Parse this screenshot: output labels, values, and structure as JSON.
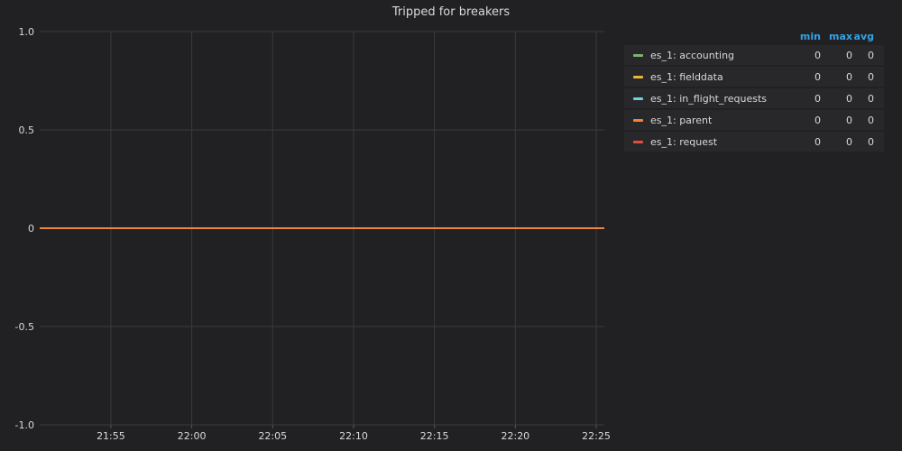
{
  "panel": {
    "title": "Tripped for breakers"
  },
  "legend": {
    "headers": {
      "min": "min",
      "max": "max",
      "avg": "avg"
    },
    "items": [
      {
        "name": "es_1: accounting",
        "color": "#7eb26d",
        "min": "0",
        "max": "0",
        "avg": "0"
      },
      {
        "name": "es_1: fielddata",
        "color": "#eab839",
        "min": "0",
        "max": "0",
        "avg": "0"
      },
      {
        "name": "es_1: in_flight_requests",
        "color": "#6ed0e0",
        "min": "0",
        "max": "0",
        "avg": "0"
      },
      {
        "name": "es_1: parent",
        "color": "#ef843c",
        "min": "0",
        "max": "0",
        "avg": "0"
      },
      {
        "name": "es_1: request",
        "color": "#e24d42",
        "min": "0",
        "max": "0",
        "avg": "0"
      }
    ]
  },
  "chart_data": {
    "type": "line",
    "title": "Tripped for breakers",
    "xlabel": "",
    "ylabel": "",
    "x_ticks": [
      "21:55",
      "22:00",
      "22:05",
      "22:10",
      "22:15",
      "22:20",
      "22:25"
    ],
    "y_ticks": [
      "1.0",
      "0.5",
      "0",
      "-0.5",
      "-1.0"
    ],
    "ylim": [
      -1,
      1
    ],
    "xlim": [
      "21:50.6",
      "22:25.5"
    ],
    "grid": true,
    "legend_position": "right",
    "series": [
      {
        "name": "es_1: accounting",
        "color": "#7eb26d",
        "x": [
          "21:50.6",
          "22:25.5"
        ],
        "y": [
          0,
          0
        ]
      },
      {
        "name": "es_1: fielddata",
        "color": "#eab839",
        "x": [
          "21:50.6",
          "22:25.5"
        ],
        "y": [
          0,
          0
        ]
      },
      {
        "name": "es_1: in_flight_requests",
        "color": "#6ed0e0",
        "x": [
          "21:50.6",
          "22:25.5"
        ],
        "y": [
          0,
          0
        ]
      },
      {
        "name": "es_1: request",
        "color": "#e24d42",
        "x": [
          "21:50.6",
          "22:25.5"
        ],
        "y": [
          0,
          0
        ]
      },
      {
        "name": "es_1: parent",
        "color": "#ef843c",
        "x": [
          "21:50.6",
          "22:25.5"
        ],
        "y": [
          0,
          0
        ]
      }
    ]
  }
}
